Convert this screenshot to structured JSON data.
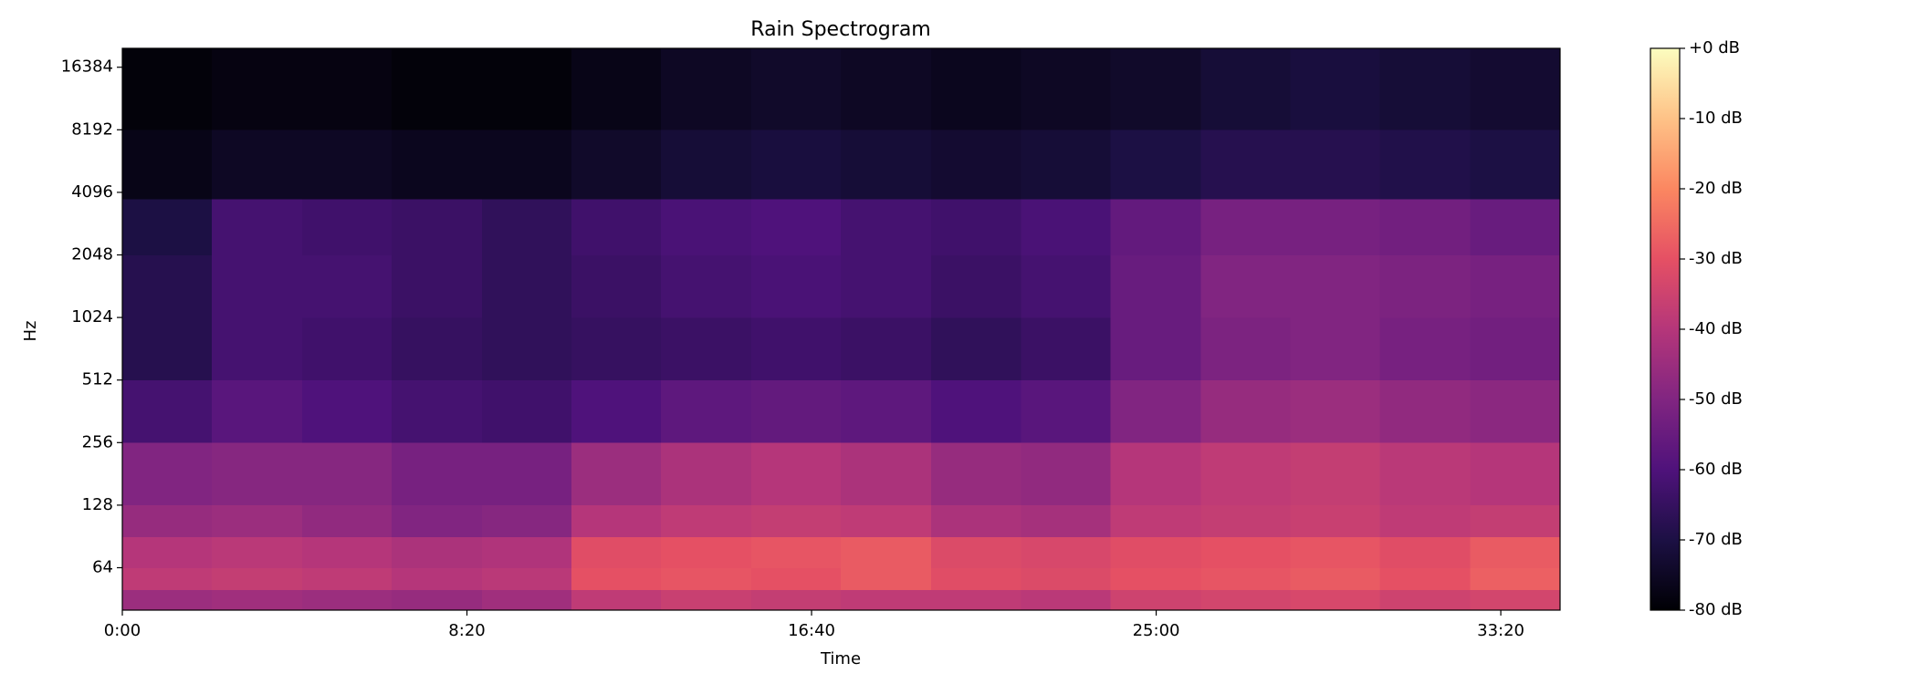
{
  "chart_data": {
    "type": "spectrogram",
    "title": "Rain Spectrogram",
    "x_label": "Time",
    "y_label": "Hz",
    "colormap": "magma",
    "yscale": "log",
    "xlim": [
      0,
      2086
    ],
    "ylim": [
      40,
      20200
    ],
    "xticks": [
      {
        "value": 0,
        "label": "0:00"
      },
      {
        "value": 500,
        "label": "8:20"
      },
      {
        "value": 1000,
        "label": "16:40"
      },
      {
        "value": 1500,
        "label": "25:00"
      },
      {
        "value": 2000,
        "label": "33:20"
      }
    ],
    "yticks": [
      64,
      128,
      256,
      512,
      1024,
      2048,
      4096,
      8192,
      16384
    ],
    "zlim": [
      -80,
      0
    ],
    "zticks": [
      {
        "value": 0,
        "label": "+0 dB"
      },
      {
        "value": -10,
        "label": "-10 dB"
      },
      {
        "value": -20,
        "label": "-20 dB"
      },
      {
        "value": -30,
        "label": "-30 dB"
      },
      {
        "value": -40,
        "label": "-40 dB"
      },
      {
        "value": -50,
        "label": "-50 dB"
      },
      {
        "value": -60,
        "label": "-60 dB"
      },
      {
        "value": -70,
        "label": "-70 dB"
      },
      {
        "value": -80,
        "label": "-80 dB"
      }
    ],
    "time_edges": [
      0,
      130,
      261,
      391,
      522,
      652,
      782,
      913,
      1043,
      1174,
      1304,
      1434,
      1565,
      1695,
      1825,
      1956,
      2086
    ],
    "freq_edges": [
      40,
      50,
      64,
      90,
      128,
      256,
      512,
      1024,
      2048,
      3800,
      8192,
      20200
    ],
    "z": [
      [
        -45,
        -44,
        -45,
        -46,
        -44,
        -38,
        -36,
        -37,
        -38,
        -38,
        -39,
        -35,
        -34,
        -33,
        -35,
        -34
      ],
      [
        -38,
        -37,
        -38,
        -40,
        -39,
        -30,
        -29,
        -30,
        -28,
        -31,
        -32,
        -30,
        -29,
        -28,
        -30,
        -27
      ],
      [
        -40,
        -39,
        -40,
        -42,
        -41,
        -31,
        -30,
        -29,
        -28,
        -32,
        -33,
        -31,
        -30,
        -29,
        -31,
        -28
      ],
      [
        -46,
        -45,
        -47,
        -50,
        -49,
        -40,
        -38,
        -37,
        -38,
        -42,
        -43,
        -38,
        -37,
        -36,
        -38,
        -37
      ],
      [
        -50,
        -49,
        -49,
        -52,
        -52,
        -45,
        -42,
        -40,
        -42,
        -46,
        -47,
        -40,
        -38,
        -37,
        -39,
        -40
      ],
      [
        -62,
        -58,
        -60,
        -62,
        -63,
        -60,
        -57,
        -56,
        -57,
        -60,
        -58,
        -50,
        -46,
        -45,
        -47,
        -48
      ],
      [
        -68,
        -62,
        -63,
        -65,
        -66,
        -65,
        -64,
        -63,
        -64,
        -66,
        -64,
        -55,
        -51,
        -50,
        -52,
        -53
      ],
      [
        -68,
        -62,
        -62,
        -64,
        -66,
        -64,
        -62,
        -61,
        -62,
        -64,
        -62,
        -55,
        -50,
        -50,
        -51,
        -52
      ],
      [
        -70,
        -62,
        -63,
        -64,
        -66,
        -63,
        -61,
        -60,
        -62,
        -63,
        -61,
        -56,
        -52,
        -52,
        -53,
        -55
      ],
      [
        -77,
        -75,
        -75,
        -76,
        -76,
        -74,
        -72,
        -71,
        -72,
        -73,
        -72,
        -70,
        -68,
        -68,
        -69,
        -70
      ],
      [
        -79,
        -78,
        -78,
        -79,
        -79,
        -77,
        -75,
        -74,
        -75,
        -76,
        -75,
        -74,
        -72,
        -71,
        -72,
        -73
      ]
    ]
  }
}
